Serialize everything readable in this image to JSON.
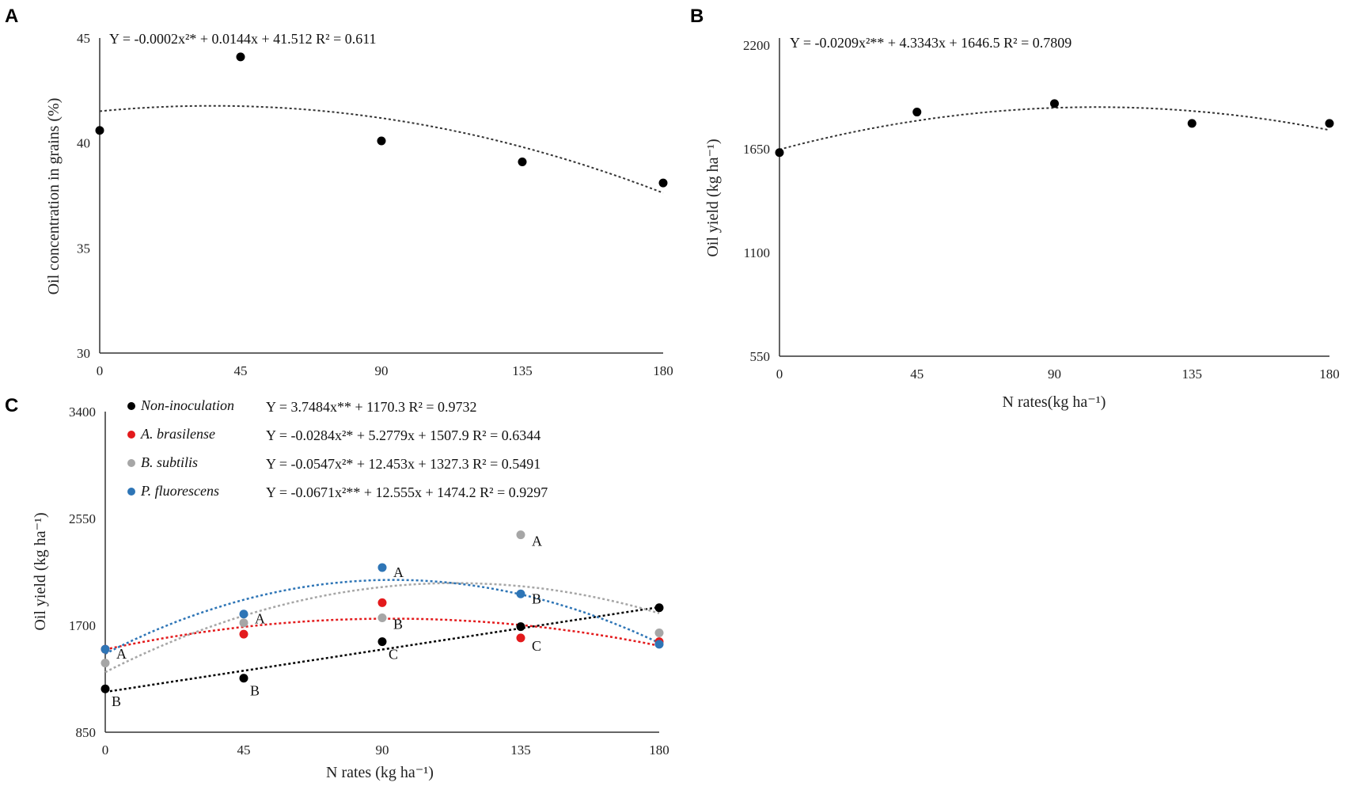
{
  "chart_data": [
    {
      "panel": "A",
      "type": "scatter",
      "xlabel": "",
      "ylabel": "Oil concentration in grains (%)",
      "x_ticks": [
        "0",
        "45",
        "90",
        "135",
        "180"
      ],
      "y_ticks": [
        "30",
        "35",
        "40",
        "45"
      ],
      "xlim": [
        0,
        180
      ],
      "ylim": [
        30,
        45
      ],
      "equation": "Y = -0.0002x²* + 0.0144x + 41.512 R² = 0.611",
      "trend": {
        "a": -0.0002,
        "b": 0.0144,
        "c": 41.512
      },
      "series": [
        {
          "name": "data",
          "color": "#000000",
          "x": [
            0,
            45,
            90,
            135,
            180
          ],
          "y": [
            40.6,
            44.1,
            40.1,
            39.1,
            38.1
          ]
        }
      ]
    },
    {
      "panel": "B",
      "type": "scatter",
      "xlabel": "N rates(kg ha⁻¹)",
      "ylabel": "Oil yield (kg ha⁻¹)",
      "x_ticks": [
        "0",
        "45",
        "90",
        "135",
        "180"
      ],
      "y_ticks": [
        "550",
        "1100",
        "1650",
        "2200"
      ],
      "xlim": [
        0,
        180
      ],
      "ylim": [
        550,
        2200
      ],
      "equation": "Y = -0.0209x²** + 4.3343x + 1646.5 R² = 0.7809",
      "trend": {
        "a": -0.0209,
        "b": 4.3343,
        "c": 1646.5
      },
      "series": [
        {
          "name": "data",
          "color": "#000000",
          "x": [
            0,
            45,
            90,
            135,
            180
          ],
          "y": [
            1630,
            1845,
            1890,
            1785,
            1785
          ]
        }
      ]
    },
    {
      "panel": "C",
      "type": "scatter",
      "xlabel": "N rates (kg ha⁻¹)",
      "ylabel": "Oil yield (kg ha⁻¹)",
      "x_ticks": [
        "0",
        "45",
        "90",
        "135",
        "180"
      ],
      "y_ticks": [
        "850",
        "1700",
        "2550",
        "3400"
      ],
      "xlim": [
        0,
        180
      ],
      "ylim": [
        850,
        3400
      ],
      "series": [
        {
          "name": "Non-inoculation",
          "color": "#000000",
          "equation": "Y = 3.7484x** + 1170.3 R² = 0.9732",
          "trend": {
            "a": 0,
            "b": 3.7484,
            "c": 1170.3
          },
          "x": [
            0,
            45,
            90,
            135,
            180
          ],
          "y": [
            1195,
            1280,
            1570,
            1690,
            1840
          ],
          "letters": [
            "B",
            "B",
            "C",
            "",
            ""
          ]
        },
        {
          "name": "A. brasilense",
          "color": "#e31a1c",
          "equation": "Y = -0.0284x²* + 5.2779x + 1507.9 R² = 0.6344",
          "trend": {
            "a": -0.0284,
            "b": 5.2779,
            "c": 1507.9
          },
          "x": [
            0,
            45,
            90,
            135,
            180
          ],
          "y": [
            1510,
            1630,
            1880,
            1600,
            1570
          ],
          "letters": [
            "",
            "",
            "",
            "C",
            ""
          ]
        },
        {
          "name": "B. subtilis",
          "color": "#a6a6a6",
          "equation": "Y = -0.0547x²* + 12.453x + 1327.3 R² = 0.5491",
          "trend": {
            "a": -0.0547,
            "b": 12.453,
            "c": 1327.3
          },
          "x": [
            0,
            45,
            90,
            135,
            180
          ],
          "y": [
            1400,
            1720,
            1760,
            2420,
            1640
          ],
          "letters": [
            "",
            "",
            "B",
            "A",
            ""
          ]
        },
        {
          "name": "P. fluorescens",
          "color": "#2e75b6",
          "equation": "Y = -0.0671x²** + 12.555x + 1474.2 R² = 0.9297",
          "trend": {
            "a": -0.0671,
            "b": 12.555,
            "c": 1474.2
          },
          "x": [
            0,
            45,
            90,
            135,
            180
          ],
          "y": [
            1510,
            1790,
            2160,
            1950,
            1550
          ],
          "letters": [
            "A",
            "A",
            "A",
            "B",
            ""
          ]
        }
      ]
    }
  ]
}
